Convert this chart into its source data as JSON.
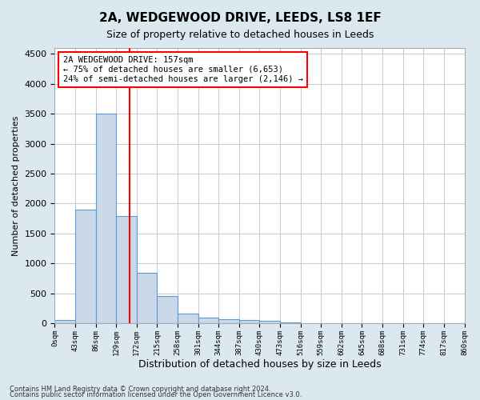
{
  "title1": "2A, WEDGEWOOD DRIVE, LEEDS, LS8 1EF",
  "title2": "Size of property relative to detached houses in Leeds",
  "xlabel": "Distribution of detached houses by size in Leeds",
  "ylabel": "Number of detached properties",
  "bin_labels": [
    "0sqm",
    "43sqm",
    "86sqm",
    "129sqm",
    "172sqm",
    "215sqm",
    "258sqm",
    "301sqm",
    "344sqm",
    "387sqm",
    "430sqm",
    "473sqm",
    "516sqm",
    "559sqm",
    "602sqm",
    "645sqm",
    "688sqm",
    "731sqm",
    "774sqm",
    "817sqm",
    "860sqm"
  ],
  "bar_heights": [
    50,
    1900,
    3500,
    1790,
    840,
    460,
    160,
    100,
    65,
    55,
    35,
    20,
    0,
    0,
    0,
    0,
    0,
    0,
    0,
    0
  ],
  "bar_color": "#c9d9e8",
  "bar_edge_color": "#5b9bd5",
  "vline_x": 157,
  "vline_color": "red",
  "ylim": [
    0,
    4600
  ],
  "yticks": [
    0,
    500,
    1000,
    1500,
    2000,
    2500,
    3000,
    3500,
    4000,
    4500
  ],
  "annotation_line1": "2A WEDGEWOOD DRIVE: 157sqm",
  "annotation_line2": "← 75% of detached houses are smaller (6,653)",
  "annotation_line3": "24% of semi-detached houses are larger (2,146) →",
  "annotation_box_color": "white",
  "annotation_border_color": "red",
  "footer1": "Contains HM Land Registry data © Crown copyright and database right 2024.",
  "footer2": "Contains public sector information licensed under the Open Government Licence v3.0.",
  "bg_color": "#dce8f0",
  "plot_bg_color": "#ffffff",
  "bin_width": 43,
  "grid_color": "#c0cdd8"
}
